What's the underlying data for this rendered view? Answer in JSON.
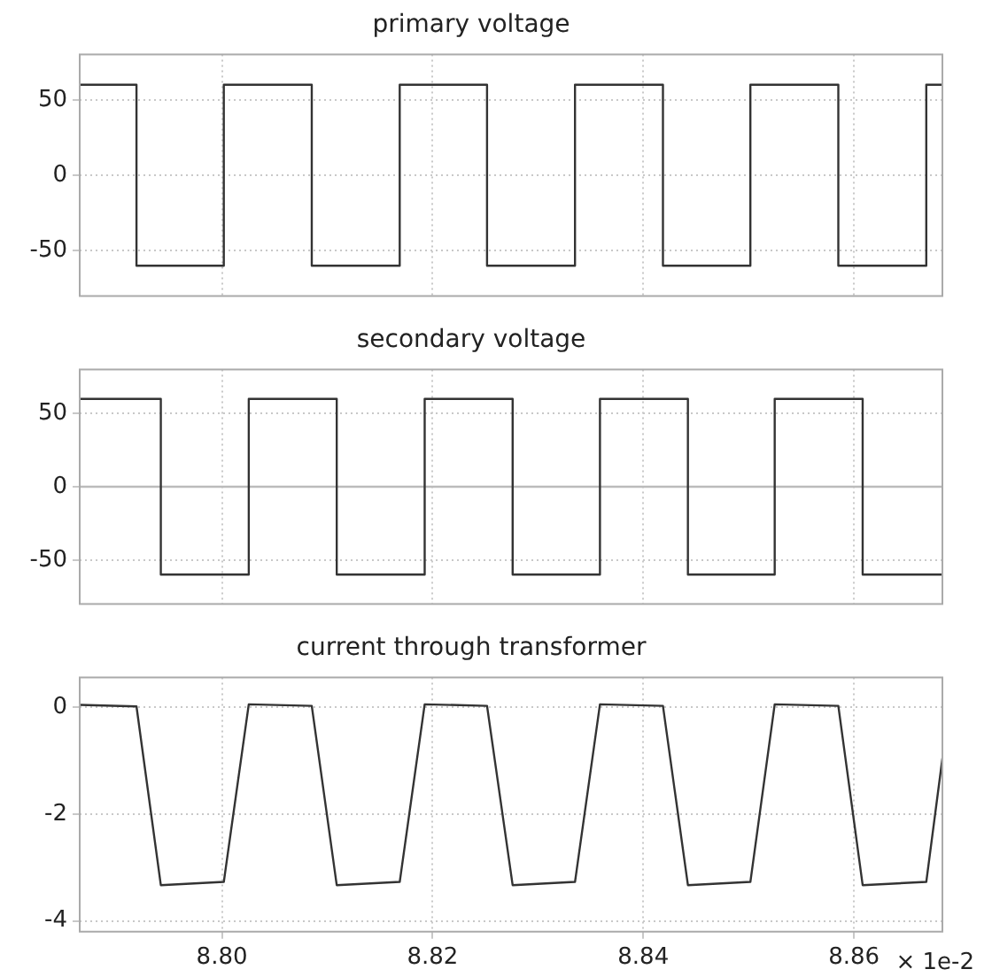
{
  "chart_data": [
    {
      "type": "step",
      "title": "primary voltage",
      "series": [
        {
          "color": "#333333",
          "x": [
            8.7865,
            8.79189,
            8.80018,
            8.80853,
            8.81688,
            8.82517,
            8.83352,
            8.84187,
            8.85017,
            8.85852,
            8.86687,
            8.8684
          ],
          "values": [
            60,
            -60,
            60,
            -60,
            60,
            -60,
            60,
            -60,
            60,
            -60,
            60,
            60
          ]
        }
      ],
      "xlim": [
        8.7865,
        8.8684
      ],
      "xticks": [
        {
          "value": 8.8,
          "label": null
        },
        {
          "value": 8.82,
          "label": null
        },
        {
          "value": 8.84,
          "label": null
        },
        {
          "value": 8.86,
          "label": null
        }
      ],
      "ylim": [
        -80,
        80
      ],
      "yticks": [
        -50,
        0,
        50
      ],
      "grid": true,
      "tick_labels": "y",
      "legend": false
    },
    {
      "type": "step",
      "title": "secondary voltage",
      "series": [
        {
          "color": "#333333",
          "x": [
            8.7865,
            8.7942,
            8.80255,
            8.8109,
            8.81925,
            8.8276,
            8.83589,
            8.84424,
            8.85248,
            8.86083,
            8.8684
          ],
          "values": [
            60,
            -60,
            60,
            -60,
            60,
            -60,
            60,
            -60,
            60,
            -60,
            -60
          ]
        }
      ],
      "xlim": [
        8.7865,
        8.8684
      ],
      "xticks": [
        {
          "value": 8.8,
          "label": null
        },
        {
          "value": 8.82,
          "label": null
        },
        {
          "value": 8.84,
          "label": null
        },
        {
          "value": 8.86,
          "label": null
        }
      ],
      "ylim": [
        -80,
        80
      ],
      "yticks": [
        -50,
        0,
        50
      ],
      "grid": true,
      "tick_labels": "y",
      "legend": false,
      "ref_lines": [
        {
          "axis": "y",
          "value": 0,
          "color": "#bbbbbb",
          "line_style": "solid"
        }
      ]
    },
    {
      "type": "line",
      "title": "current through transformer",
      "xlabel": "× 1e-2",
      "series": [
        {
          "color": "#333333",
          "x": [
            8.7865,
            8.79189,
            8.7942,
            8.80018,
            8.80255,
            8.80853,
            8.8109,
            8.81688,
            8.81925,
            8.82517,
            8.8276,
            8.83352,
            8.83589,
            8.84187,
            8.84424,
            8.85017,
            8.85248,
            8.85852,
            8.86083,
            8.86687,
            8.8684
          ],
          "values": [
            0.04,
            0.01,
            -3.33,
            -3.27,
            0.05,
            0.02,
            -3.33,
            -3.27,
            0.05,
            0.02,
            -3.33,
            -3.27,
            0.05,
            0.02,
            -3.33,
            -3.27,
            0.05,
            0.02,
            -3.33,
            -3.27,
            -0.96
          ]
        }
      ],
      "xlim": [
        8.7865,
        8.8684
      ],
      "xticks": [
        {
          "value": 8.8,
          "label": "8.80"
        },
        {
          "value": 8.82,
          "label": "8.82"
        },
        {
          "value": 8.84,
          "label": "8.84"
        },
        {
          "value": 8.86,
          "label": "8.86"
        }
      ],
      "ylim": [
        -4.2,
        0.55
      ],
      "yticks": [
        -4,
        -2,
        0
      ],
      "grid": true,
      "legend": false
    }
  ]
}
